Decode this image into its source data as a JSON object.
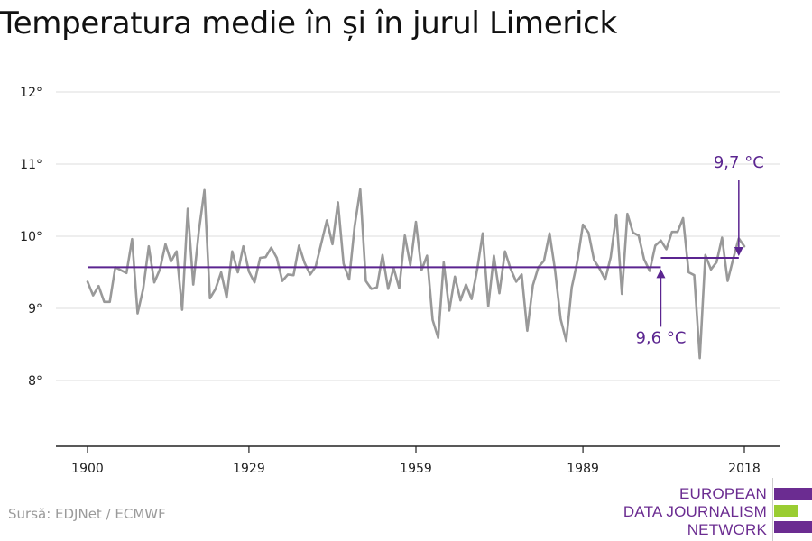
{
  "title": "Temperatura medie în și în jurul Limerick",
  "source": "Sursă: EDJNet / ECMWF",
  "logo": {
    "lines": [
      "EUROPEAN",
      "DATA JOURNALISM",
      "NETWORK"
    ],
    "colors": [
      "#6b2c91",
      "#9acd32",
      "#6b2c91"
    ]
  },
  "chart_data": {
    "type": "line",
    "title": "Temperatura medie în și în jurul Limerick",
    "xlabel": "",
    "ylabel": "",
    "xlim": [
      1900,
      2018
    ],
    "ylim": [
      7.1,
      12.4
    ],
    "x_ticks": [
      1900,
      1929,
      1959,
      1989,
      2018
    ],
    "y_ticks": [
      8,
      9,
      10,
      11,
      12
    ],
    "y_tick_labels": [
      "8°",
      "9°",
      "10°",
      "11°",
      "12°"
    ],
    "grid": true,
    "legend": "none",
    "series": [
      {
        "color": "#999999",
        "x": [
          1900,
          1901,
          1902,
          1903,
          1904,
          1905,
          1906,
          1907,
          1908,
          1909,
          1910,
          1911,
          1912,
          1913,
          1914,
          1915,
          1916,
          1917,
          1918,
          1919,
          1920,
          1921,
          1922,
          1923,
          1924,
          1925,
          1926,
          1927,
          1928,
          1929,
          1930,
          1931,
          1932,
          1933,
          1934,
          1935,
          1936,
          1937,
          1938,
          1939,
          1940,
          1941,
          1942,
          1943,
          1944,
          1945,
          1946,
          1947,
          1948,
          1949,
          1950,
          1951,
          1952,
          1953,
          1954,
          1955,
          1956,
          1957,
          1958,
          1959,
          1960,
          1961,
          1962,
          1963,
          1964,
          1965,
          1966,
          1967,
          1968,
          1969,
          1970,
          1971,
          1972,
          1973,
          1974,
          1975,
          1976,
          1977,
          1978,
          1979,
          1980,
          1981,
          1982,
          1983,
          1984,
          1985,
          1986,
          1987,
          1988,
          1989,
          1990,
          1991,
          1992,
          1993,
          1994,
          1995,
          1996,
          1997,
          1998,
          1999,
          2000,
          2001,
          2002,
          2003,
          2004,
          2005,
          2006,
          2007,
          2008,
          2009,
          2010,
          2011,
          2012,
          2013,
          2014,
          2015,
          2016,
          2017,
          2018
        ],
        "values": [
          9.37,
          9.18,
          9.31,
          9.09,
          9.09,
          9.57,
          9.53,
          9.49,
          9.96,
          8.93,
          9.27,
          9.86,
          9.36,
          9.54,
          9.89,
          9.65,
          9.79,
          8.98,
          10.38,
          9.33,
          10.07,
          10.64,
          9.14,
          9.27,
          9.5,
          9.15,
          9.79,
          9.5,
          9.86,
          9.51,
          9.36,
          9.7,
          9.71,
          9.84,
          9.7,
          9.38,
          9.47,
          9.46,
          9.87,
          9.63,
          9.47,
          9.58,
          9.9,
          10.22,
          9.89,
          10.47,
          9.62,
          9.4,
          10.14,
          10.65,
          9.38,
          9.27,
          9.29,
          9.74,
          9.27,
          9.56,
          9.28,
          10.01,
          9.6,
          10.2,
          9.53,
          9.73,
          8.84,
          8.59,
          9.64,
          8.97,
          9.44,
          9.11,
          9.33,
          9.13,
          9.54,
          10.04,
          9.03,
          9.73,
          9.21,
          9.79,
          9.55,
          9.37,
          9.47,
          8.69,
          9.32,
          9.57,
          9.66,
          10.04,
          9.53,
          8.85,
          8.55,
          9.29,
          9.65,
          10.16,
          10.05,
          9.67,
          9.55,
          9.4,
          9.71,
          10.3,
          9.2,
          10.31,
          10.05,
          10.01,
          9.68,
          9.52,
          9.87,
          9.94,
          9.82,
          10.06,
          10.06,
          10.25,
          9.5,
          9.46,
          8.31,
          9.74,
          9.54,
          9.64,
          9.98,
          9.38,
          9.69,
          9.97,
          9.86
        ]
      },
      {
        "name": "",
        "color": "#5b2590",
        "segments": [
          {
            "x": [
              1900,
              2003
            ],
            "y": [
              9.57,
              9.57
            ]
          },
          {
            "x": [
              2003,
              2017
            ],
            "y": [
              9.7,
              9.7
            ]
          }
        ]
      }
    ],
    "annotations": [
      {
        "text": "9,6 °C",
        "x": 2003,
        "y": 9.57,
        "label_y": 8.52,
        "color": "#5b2590"
      },
      {
        "text": "9,7 °C",
        "x": 2017,
        "y": 9.7,
        "label_y": 10.9,
        "color": "#5b2590"
      }
    ]
  }
}
